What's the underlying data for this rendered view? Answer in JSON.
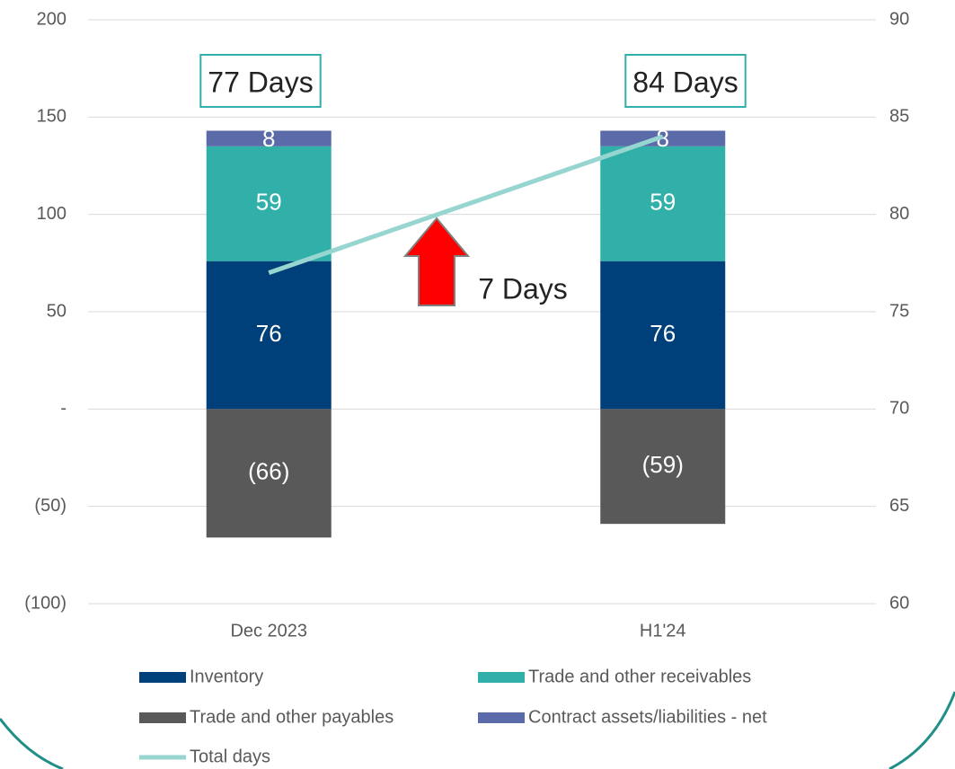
{
  "chart_data": {
    "type": "bar",
    "stacked": true,
    "categories": [
      "Dec 2023",
      "H1'24"
    ],
    "series": [
      {
        "name": "Inventory",
        "color": "#00407a",
        "values": [
          76,
          76
        ]
      },
      {
        "name": "Trade and other receivables",
        "color": "#30b0a8",
        "values": [
          59,
          59
        ]
      },
      {
        "name": "Trade and other payables",
        "color": "#595959",
        "values": [
          -66,
          -59
        ],
        "value_labels": [
          "(66)",
          "(59)"
        ]
      },
      {
        "name": "Contract assets/liabilities - net",
        "color": "#5b6aa8",
        "values": [
          8,
          8
        ]
      },
      {
        "name": "Total days",
        "type": "line",
        "axis": "y2",
        "color": "#97d5d0",
        "values": [
          77,
          84
        ]
      }
    ],
    "ylim": [
      -100,
      200
    ],
    "yticks": [
      {
        "value": -100,
        "label": "(100)"
      },
      {
        "value": -50,
        "label": "(50)"
      },
      {
        "value": 0,
        "label": "-"
      },
      50,
      100,
      150,
      200
    ],
    "y2lim": [
      60,
      90
    ],
    "y2ticks": [
      60,
      65,
      70,
      75,
      80,
      85,
      90
    ],
    "grid": true,
    "legend": "bottom",
    "annotations": [
      "77 Days",
      "84 Days",
      "7 Days"
    ]
  }
}
